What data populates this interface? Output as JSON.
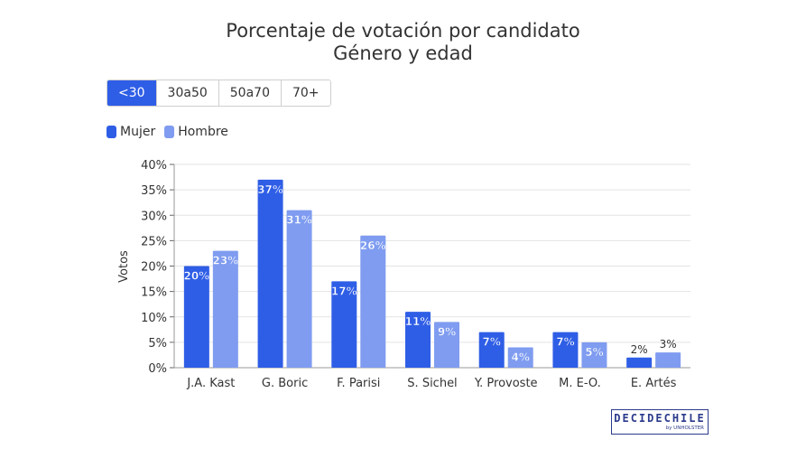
{
  "header": {
    "title": "Porcentaje de votación por candidato",
    "subtitle": "Género y edad"
  },
  "tabs": [
    {
      "label": "<30",
      "active": true
    },
    {
      "label": "30a50",
      "active": false
    },
    {
      "label": "50a70",
      "active": false
    },
    {
      "label": "70+",
      "active": false
    }
  ],
  "legend": {
    "items": [
      {
        "label": "Mujer",
        "color": "#2f5ee6"
      },
      {
        "label": "Hombre",
        "color": "#7f9cf0"
      }
    ]
  },
  "chart_data": {
    "type": "bar",
    "categories": [
      "J.A. Kast",
      "G. Boric",
      "F. Parisi",
      "S. Sichel",
      "Y. Provoste",
      "M. E-O.",
      "E. Artés"
    ],
    "series": [
      {
        "name": "Mujer",
        "color": "#2f5ee6",
        "values": [
          20,
          37,
          17,
          11,
          7,
          7,
          2
        ]
      },
      {
        "name": "Hombre",
        "color": "#7f9cf0",
        "values": [
          23,
          31,
          26,
          9,
          4,
          5,
          3
        ]
      }
    ],
    "ylabel": "Votos",
    "ylim": [
      0,
      40
    ],
    "yticks": [
      "0%",
      "5%",
      "10%",
      "15%",
      "20%",
      "25%",
      "30%",
      "35%",
      "40%"
    ],
    "value_suffix": "%",
    "grid": true
  },
  "branding": {
    "logo_main": "DECIDECHILE",
    "logo_sub": "by UNHOLSTER"
  }
}
